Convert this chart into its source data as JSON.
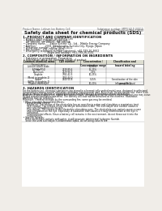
{
  "bg_color": "#f0ede8",
  "paper_color": "#ffffff",
  "header_left": "Product Name: Lithium Ion Battery Cell",
  "header_right_line1": "Substance number: MPY534LD 00010",
  "header_right_line2": "Established / Revision: Dec.1 2010",
  "title": "Safety data sheet for chemical products (SDS)",
  "section1_title": "1. PRODUCT AND COMPANY IDENTIFICATION",
  "section1_lines": [
    " • Product name: Lithium Ion Battery Cell",
    " • Product code: Cylindrical-type cell",
    "    SH 18650U, SH 18650L, SH 18650A",
    " • Company name:     Sanyo Electric Co., Ltd.,  Mobile Energy Company",
    " • Address:           2001  Kamikosaka, Sumoto-City, Hyogo, Japan",
    " • Telephone number:  +81-799-26-4111",
    " • Fax number:  +81-799-26-4121",
    " • Emergency telephone number (daytime): +81-799-26-3662",
    "                              (Night and holiday): +81-799-26-3101"
  ],
  "section2_title": "2. COMPOSITION / INFORMATION ON INGREDIENTS",
  "section2_line1": " • Substance or preparation: Preparation",
  "section2_line2": " • Information about the chemical nature of product:",
  "table_headers": [
    "Common chemical name",
    "CAS number",
    "Concentration /\nConcentration range",
    "Classification and\nhazard labeling"
  ],
  "table_subheader": "Several name",
  "table_rows": [
    [
      "Lithium cobalt oxide\n(LiMnCoPO4)",
      "",
      "50-60%",
      ""
    ],
    [
      "Iron",
      "7439-89-6",
      "15-25%",
      ""
    ],
    [
      "Aluminum",
      "7429-90-5",
      "2-6%",
      ""
    ],
    [
      "Graphite\n(Metal in graphite-1)\n(Al/Mo in graphite-1)",
      "7782-42-5\n7783-44-0",
      "10-25%",
      ""
    ],
    [
      "Copper",
      "7440-50-8",
      "5-15%",
      "Sensitization of the skin\ngroup No.2"
    ],
    [
      "Organic electrolyte",
      "",
      "10-20%",
      "Inflammable liquid"
    ]
  ],
  "section3_title": "3. HAZARDS IDENTIFICATION",
  "section3_para1": "For the battery cell, chemical substances are stored in a hermetically sealed metal case, designed to withstand\ntemperatures during normal operation-conditions (using normal use). As a result, during normal use, there is no\nphysical danger of ignition or vaporization and therefore danger of hazardous materials leakage.\nHowever, if exposed to a fire, added mechanical shock, decomposed, active electro-chemical reactions may occur.\nBy gas release ventilation operated. The battery cell case will be breached at the extreme. Hazardous\nmaterials may be released.\nMoreover, if heated strongly by the surrounding fire, some gas may be emitted.",
  "section3_bullet1": " • Most important hazard and effects:",
  "section3_human": "    Human health effects:",
  "section3_human_lines": [
    "      Inhalation: The release of the electrolyte has an anesthesia action and stimulates a respiratory tract.",
    "      Skin contact: The release of the electrolyte stimulates a skin. The electrolyte skin contact causes a",
    "      sore and stimulation on the skin.",
    "      Eye contact: The release of the electrolyte stimulates eyes. The electrolyte eye contact causes a sore",
    "      and stimulation on the eye. Especially, a substance that causes a strong inflammation of the eye is",
    "      contained.",
    "      Environmental effects: Since a battery cell remains in the environment, do not throw out it into the",
    "      environment."
  ],
  "section3_bullet2": " • Specific hazards:",
  "section3_specific_lines": [
    "    If the electrolyte contacts with water, it will generate detrimental hydrogen fluoride.",
    "    Since the used electrolyte is inflammable liquid, do not bring close to fire."
  ]
}
